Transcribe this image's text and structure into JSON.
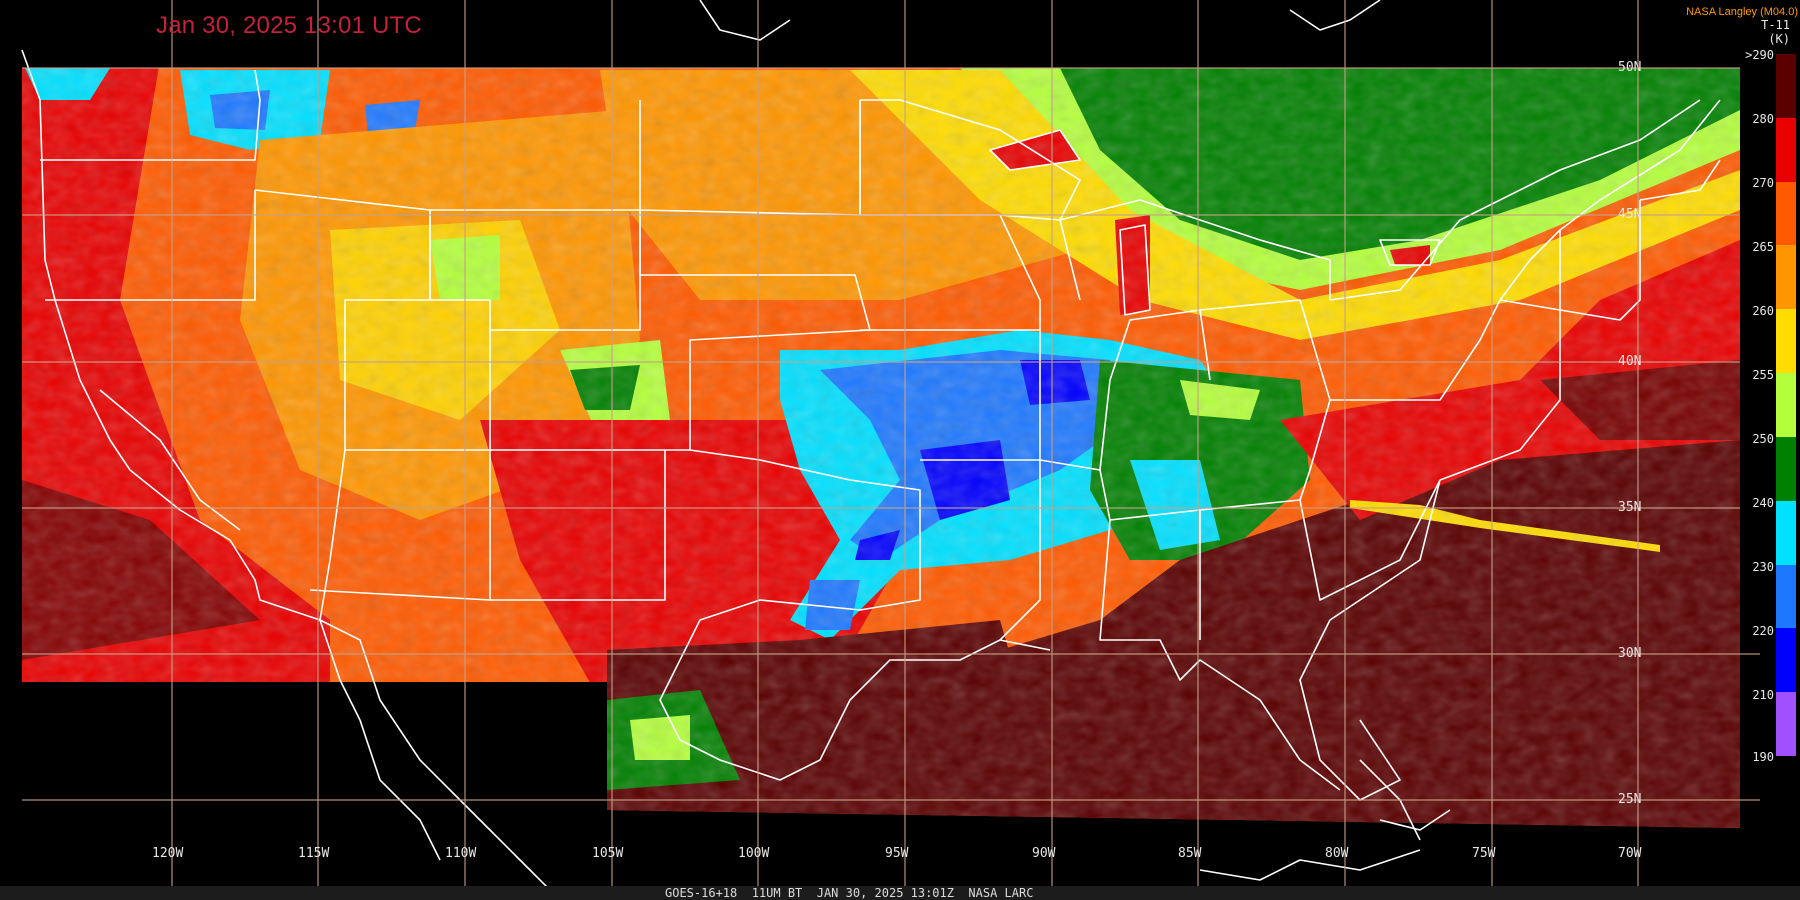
{
  "title": "Jan 30, 2025 13:01 UTC",
  "credit": "NASA Langley (M04.0)",
  "product": "T-11",
  "unit": "(K)",
  "footer": "GOES-16+18  11UM BT  JAN 30, 2025 13:01Z  NASA LARC",
  "colorbar": {
    "labels": [
      ">290",
      "280",
      "270",
      "265",
      "260",
      "255",
      "250",
      "240",
      "230",
      "220",
      "210",
      "190"
    ],
    "segments": [
      {
        "color": "#5a0000"
      },
      {
        "color": "#e80000"
      },
      {
        "color": "#ff5a00"
      },
      {
        "color": "#ff9600"
      },
      {
        "color": "#ffdc00"
      },
      {
        "color": "#b4ff3c"
      },
      {
        "color": "#008000"
      },
      {
        "color": "#00e0ff"
      },
      {
        "color": "#1e78ff"
      },
      {
        "color": "#0000ff"
      },
      {
        "color": "#a050ff"
      }
    ]
  },
  "longitude_labels": [
    "120W",
    "115W",
    "110W",
    "105W",
    "100W",
    "95W",
    "90W",
    "85W",
    "80W",
    "75W",
    "70W"
  ],
  "latitude_labels": [
    "50N",
    "45N",
    "40N",
    "35N",
    "30N",
    "25N"
  ],
  "colors": {
    "grid": "#c8a088",
    "borders": "#ffffff",
    "title": "#c4213b",
    "credit": "#ff9a00"
  }
}
